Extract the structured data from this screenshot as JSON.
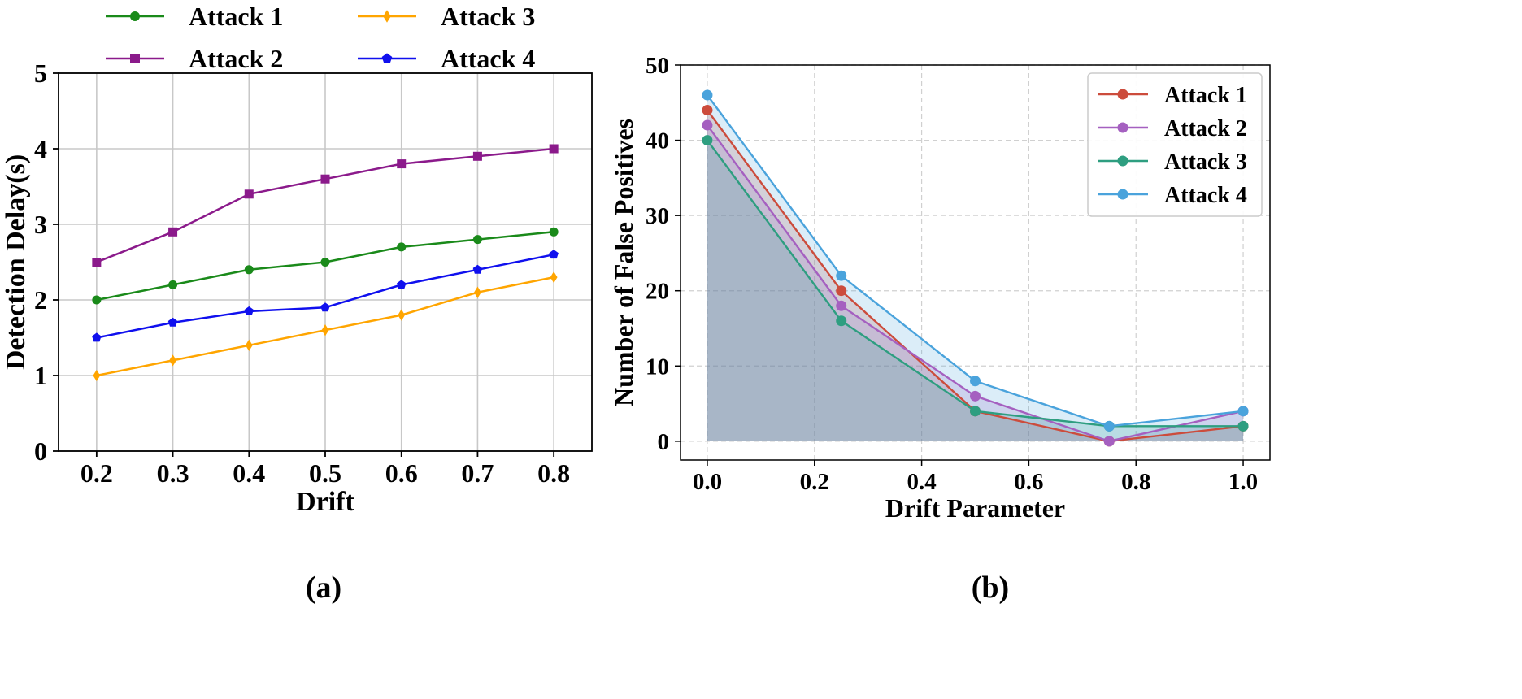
{
  "chart_data": [
    {
      "type": "line",
      "caption": "(a)",
      "xlabel": "Drift",
      "ylabel": "Detection Delay(s)",
      "x": [
        0.2,
        0.3,
        0.4,
        0.5,
        0.6,
        0.7,
        0.8
      ],
      "x_tick_labels": [
        "0.2",
        "0.3",
        "0.4",
        "0.5",
        "0.6",
        "0.7",
        "0.8"
      ],
      "xlim": [
        0.15,
        0.85
      ],
      "ylim": [
        0,
        5
      ],
      "y_ticks": [
        0,
        1,
        2,
        3,
        4,
        5
      ],
      "y_tick_labels": [
        "0",
        "1",
        "2",
        "3",
        "4",
        "5"
      ],
      "grid": true,
      "legend_position": "top-outside",
      "series": [
        {
          "name": "Attack 1",
          "color": "#1a8a1a",
          "marker": "circle",
          "values": [
            2.0,
            2.2,
            2.4,
            2.5,
            2.7,
            2.8,
            2.9
          ]
        },
        {
          "name": "Attack 2",
          "color": "#8b1a8b",
          "marker": "square",
          "values": [
            2.5,
            2.9,
            3.4,
            3.6,
            3.8,
            3.9,
            4.0
          ]
        },
        {
          "name": "Attack 3",
          "color": "#ffa500",
          "marker": "diamond",
          "values": [
            1.0,
            1.2,
            1.4,
            1.6,
            1.8,
            2.1,
            2.3
          ]
        },
        {
          "name": "Attack 4",
          "color": "#1010ee",
          "marker": "pentagon",
          "values": [
            1.5,
            1.7,
            1.85,
            1.9,
            2.2,
            2.4,
            2.6
          ]
        }
      ]
    },
    {
      "type": "area",
      "caption": "(b)",
      "xlabel": "Drift Parameter",
      "ylabel": "Number of False Positives",
      "x": [
        0.0,
        0.25,
        0.5,
        0.75,
        1.0
      ],
      "x_ticks": [
        0.0,
        0.2,
        0.4,
        0.6,
        0.8,
        1.0
      ],
      "x_tick_labels": [
        "0.0",
        "0.2",
        "0.4",
        "0.6",
        "0.8",
        "1.0"
      ],
      "xlim": [
        -0.05,
        1.05
      ],
      "ylim": [
        -2.5,
        50
      ],
      "y_ticks": [
        0,
        10,
        20,
        30,
        40,
        50
      ],
      "y_tick_labels": [
        "0",
        "10",
        "20",
        "30",
        "40",
        "50"
      ],
      "grid": true,
      "legend_position": "top-right",
      "series": [
        {
          "name": "Attack 1",
          "color": "#cc4c3c",
          "fill": "#cc4c3c",
          "values": [
            44,
            20,
            4,
            0,
            2
          ]
        },
        {
          "name": "Attack 2",
          "color": "#a560c0",
          "fill": "#a560c0",
          "values": [
            42,
            18,
            6,
            0,
            4
          ]
        },
        {
          "name": "Attack 3",
          "color": "#2e9e80",
          "fill": "#2e9e80",
          "values": [
            40,
            16,
            4,
            2,
            2
          ]
        },
        {
          "name": "Attack 4",
          "color": "#4aa3dc",
          "fill": "#4aa3dc",
          "values": [
            46,
            22,
            8,
            2,
            4
          ]
        }
      ]
    }
  ]
}
